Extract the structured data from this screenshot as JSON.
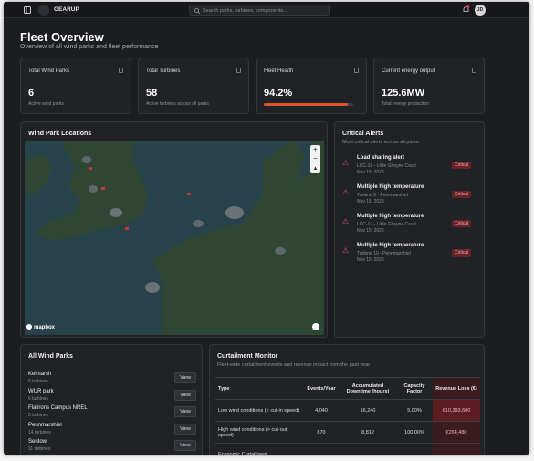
{
  "header": {
    "brand": "GEARUP",
    "search_placeholder": "Search parks, turbines, components...",
    "avatar": "JD"
  },
  "page": {
    "title": "Fleet Overview",
    "subtitle": "Overview of all wind parks and fleet performance"
  },
  "stats": [
    {
      "label": "Total Wind Parks",
      "value": 6,
      "note": "Active wind parks"
    },
    {
      "label": "Total Turbines",
      "value": 58,
      "note": "Active turbines across all parks"
    },
    {
      "label": "Fleet Health",
      "value": 94.2,
      "value_label": "94.2%"
    },
    {
      "label": "Current energy output",
      "value": "125.6MW",
      "note": "Total energy production"
    }
  ],
  "map": {
    "title": "Wind Park Locations",
    "attribution": "mapbox"
  },
  "alerts": {
    "title": "Critical Alerts",
    "subtitle": "Most critical alerts across all parks",
    "items": [
      {
        "title": "Load sharing alert",
        "source": "LCC-16 - Little Gheyne Court",
        "date": "Nov 15, 2025",
        "badge": "Critical"
      },
      {
        "title": "Multiple high temperature",
        "source": "Turbine 8 - Pennmarshiel",
        "date": "Nov 15, 2025",
        "badge": "Critical"
      },
      {
        "title": "Multiple high temperature",
        "source": "LCC-17 - Little Gheyne Court",
        "date": "Nov 15, 2025",
        "badge": "Critical"
      },
      {
        "title": "Multiple high temperature",
        "source": "Turbine 10 - Pennmarshiel",
        "date": "Nov 15, 2025",
        "badge": "Critical"
      }
    ]
  },
  "parks": {
    "title": "All Wind Parks",
    "button": "View",
    "items": [
      {
        "name": "Kelmarsh",
        "turbines": "6 turbines"
      },
      {
        "name": "WUR park",
        "turbines": "6 turbines"
      },
      {
        "name": "Flatirons Campus NREL",
        "turbines": "5 turbines"
      },
      {
        "name": "Pennmarshiel",
        "turbines": "14 turbines"
      },
      {
        "name": "Sentow",
        "turbines": "11 turbines"
      }
    ]
  },
  "curtailment": {
    "title": "Curtailment Monitor",
    "subtitle": "Fleet-wide curtailment events and revenue impact from the past year",
    "columns": [
      "Type",
      "Events/Year",
      "Accumulated Downtime (hours)",
      "Capacity Factor",
      "Revenue Loss (€)"
    ],
    "rows": [
      [
        "Low wind conditions (< cut-in speed)",
        "4,040",
        "16,240",
        "5.00%",
        "€10,393,600"
      ],
      [
        "High wind conditions (> cut-out speed)",
        "870",
        "8,812",
        "100.00%",
        "€264,480"
      ],
      [
        "Economic Curtailment"
      ]
    ]
  }
}
